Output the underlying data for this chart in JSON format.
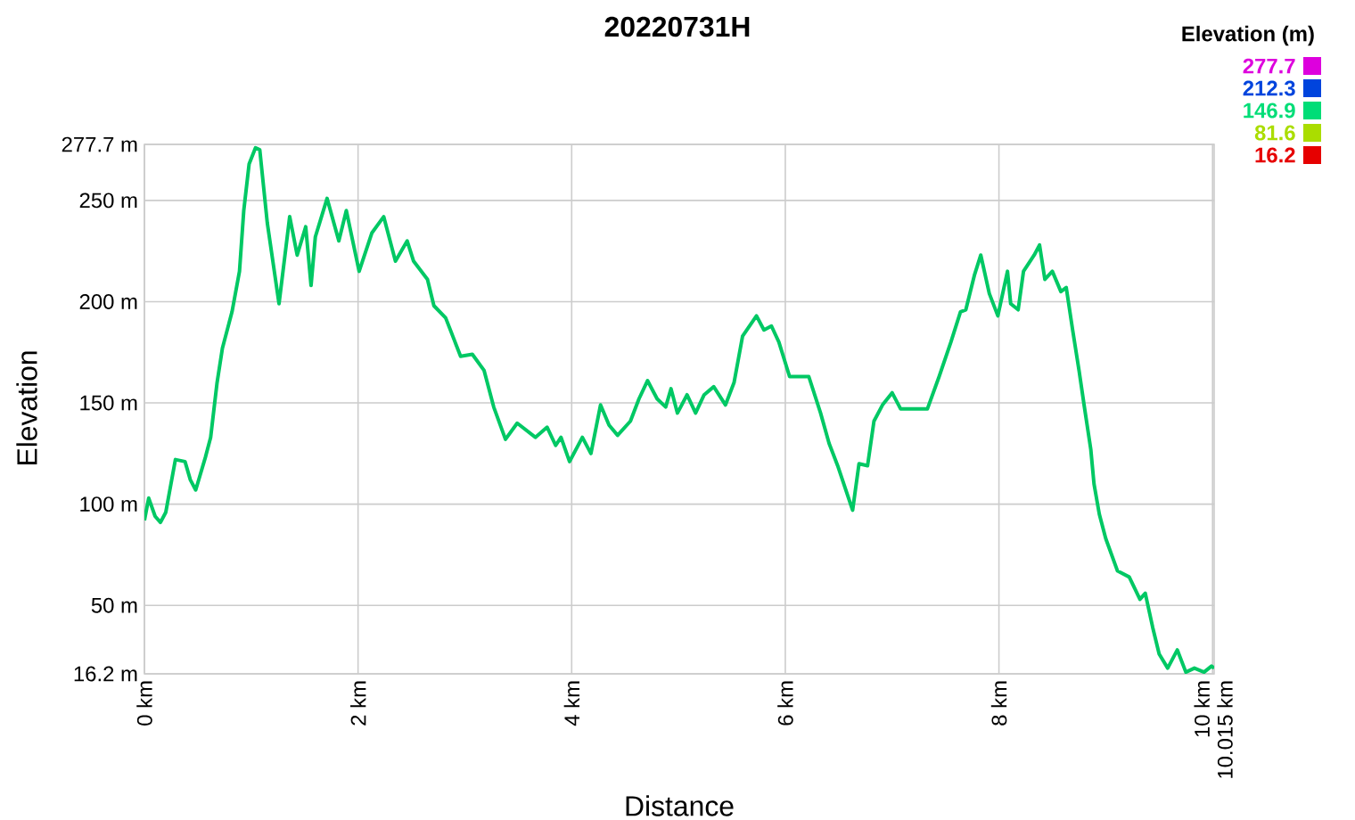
{
  "chart_data": {
    "type": "line",
    "title": "20220731H",
    "xlabel": "Distance",
    "ylabel": "Elevation",
    "clabel": "Elevation (m)",
    "x": [
      0,
      0.04,
      0.1,
      0.15,
      0.2,
      0.29,
      0.38,
      0.43,
      0.48,
      0.57,
      0.62,
      0.68,
      0.73,
      0.82,
      0.89,
      0.93,
      0.98,
      1.04,
      1.08,
      1.15,
      1.26,
      1.36,
      1.43,
      1.51,
      1.56,
      1.6,
      1.71,
      1.82,
      1.89,
      2.01,
      2.13,
      2.24,
      2.35,
      2.46,
      2.52,
      2.65,
      2.71,
      2.82,
      2.96,
      3.07,
      3.18,
      3.27,
      3.38,
      3.49,
      3.66,
      3.77,
      3.85,
      3.9,
      3.98,
      4.1,
      4.18,
      4.27,
      4.35,
      4.43,
      4.55,
      4.63,
      4.71,
      4.8,
      4.88,
      4.93,
      4.99,
      5.08,
      5.16,
      5.24,
      5.33,
      5.44,
      5.52,
      5.6,
      5.73,
      5.8,
      5.87,
      5.94,
      6.04,
      6.22,
      6.33,
      6.41,
      6.49,
      6.63,
      6.69,
      6.77,
      6.83,
      6.91,
      7.0,
      7.08,
      7.33,
      7.44,
      7.55,
      7.64,
      7.69,
      7.77,
      7.83,
      7.91,
      7.99,
      8.08,
      8.11,
      8.18,
      8.23,
      8.33,
      8.38,
      8.43,
      8.5,
      8.58,
      8.63,
      8.69,
      8.75,
      8.8,
      8.86,
      8.89,
      8.94,
      9.0,
      9.11,
      9.22,
      9.32,
      9.37,
      9.44,
      9.5,
      9.58,
      9.67,
      9.75,
      9.83,
      9.92,
      9.99,
      10.015
    ],
    "values": [
      92,
      103,
      94,
      91,
      96,
      122,
      121,
      112,
      107,
      123,
      133,
      160,
      177,
      195,
      215,
      245,
      268,
      276,
      275,
      239,
      199,
      242,
      223,
      237,
      208,
      232,
      251,
      230,
      245,
      215,
      234,
      242,
      220,
      230,
      220,
      211,
      198,
      192,
      173,
      174,
      166,
      148,
      132,
      140,
      133,
      138,
      129,
      133,
      121,
      133,
      125,
      149,
      139,
      134,
      141,
      152,
      161,
      152,
      148,
      157,
      145,
      154,
      145,
      154,
      158,
      149,
      160,
      183,
      193,
      186,
      188,
      180,
      163,
      163,
      145,
      130,
      119,
      97,
      120,
      119,
      141,
      149,
      155,
      147,
      147,
      163,
      180,
      195,
      196,
      213,
      223,
      204,
      193,
      215,
      199,
      196,
      215,
      223,
      228,
      211,
      215,
      205,
      207,
      186,
      166,
      148,
      127,
      110,
      95,
      83,
      67,
      64,
      53,
      56,
      39,
      26,
      19,
      28,
      17,
      19,
      17,
      20,
      19
    ],
    "xlim": [
      0,
      10.015
    ],
    "ylim": [
      16.2,
      277.7
    ],
    "xticks": [
      {
        "value": 0,
        "label": "0 km"
      },
      {
        "value": 2,
        "label": "2 km"
      },
      {
        "value": 4,
        "label": "4 km"
      },
      {
        "value": 6,
        "label": "6 km"
      },
      {
        "value": 8,
        "label": "8 km"
      },
      {
        "value": 10,
        "label": "10 km"
      },
      {
        "value": 10.015,
        "label": "10.015 km"
      }
    ],
    "yticks": [
      {
        "value": 16.2,
        "label": "16.2 m"
      },
      {
        "value": 50,
        "label": "50 m"
      },
      {
        "value": 100,
        "label": "100 m"
      },
      {
        "value": 150,
        "label": "150 m"
      },
      {
        "value": 200,
        "label": "200 m"
      },
      {
        "value": 250,
        "label": "250 m"
      },
      {
        "value": 277.7,
        "label": "277.7 m"
      }
    ],
    "color": "#00c864",
    "clim": [
      16.2,
      277.7
    ],
    "cticks": [
      277.7,
      212.3,
      146.9,
      81.6,
      16.2
    ],
    "grid": true
  }
}
